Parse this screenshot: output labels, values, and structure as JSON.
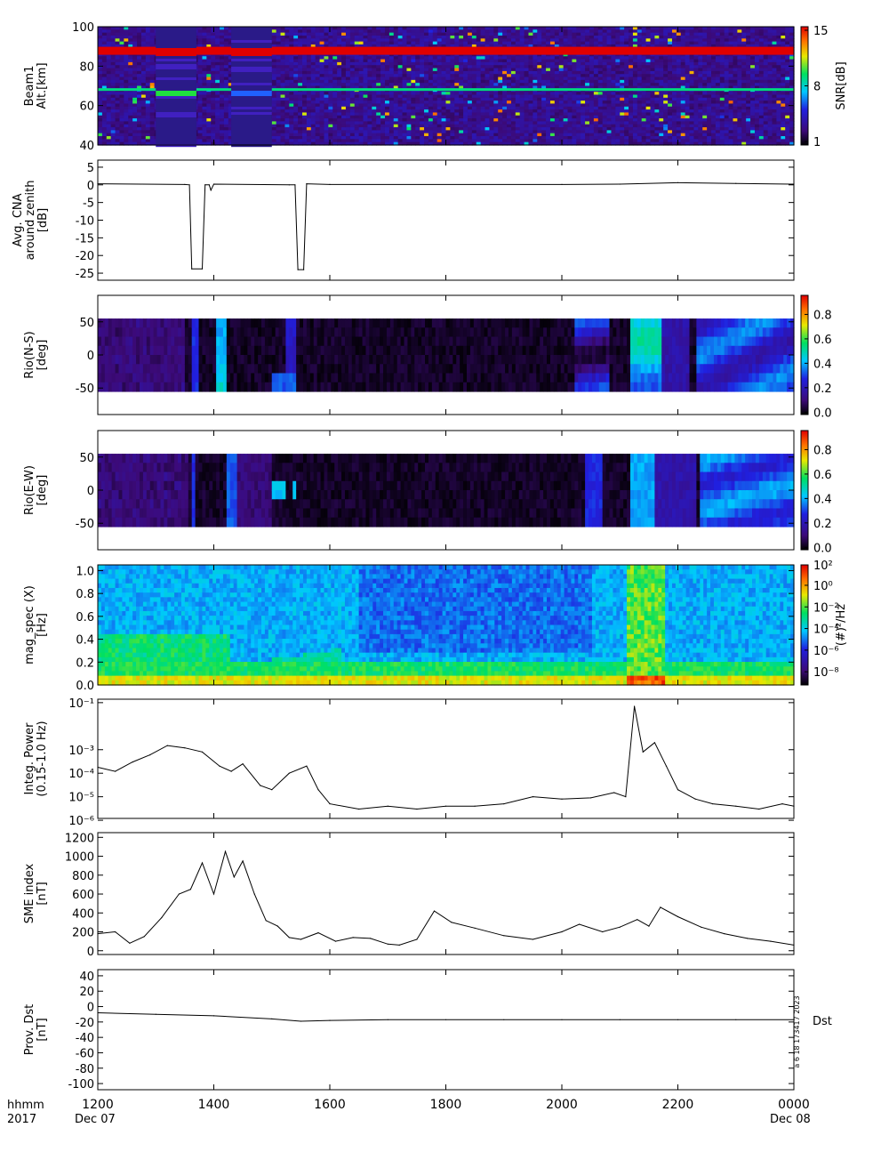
{
  "time_axis": {
    "tick_labels": [
      "1200",
      "1400",
      "1600",
      "1800",
      "2000",
      "2200",
      "0000"
    ],
    "tick_hours": [
      12,
      14,
      16,
      18,
      20,
      22,
      24
    ],
    "range_hours": [
      12,
      24
    ],
    "row_label_1": "hhmm",
    "row_label_2": "2017",
    "start_date": "Dec 07",
    "end_date": "Dec 08"
  },
  "side_note": "a  6 18 173417 2023",
  "chart_data": [
    {
      "id": "beam1",
      "type": "heatmap",
      "ylabel": [
        "Beam1",
        "Alt.[km]"
      ],
      "yticks": [
        "100",
        "80",
        "60",
        "40"
      ],
      "ylim": [
        40,
        100
      ],
      "colorbar": {
        "label": "SNR[dB]",
        "ticks": [
          "15",
          "8",
          "1"
        ],
        "range": [
          1,
          15
        ]
      },
      "gaps": [
        [
          13.0,
          13.7
        ],
        [
          14.3,
          15.0
        ]
      ],
      "bands": [
        {
          "alt": 88,
          "value": 15
        },
        {
          "alt": 67,
          "value": 9
        }
      ]
    },
    {
      "id": "cna",
      "type": "line",
      "ylabel": [
        "Avg. CNA",
        "around zenith",
        "[dB]"
      ],
      "yticks": [
        "5",
        "0",
        "-5",
        "-10",
        "-15",
        "-20",
        "-25"
      ],
      "ylim": [
        -27,
        7
      ],
      "x": [
        12.0,
        13.5,
        13.58,
        13.62,
        13.8,
        13.85,
        13.92,
        13.95,
        14.0,
        15.3,
        15.4,
        15.45,
        15.55,
        15.6,
        16.0,
        20.0,
        21.0,
        22.0,
        23.0,
        24.0
      ],
      "y": [
        0.3,
        0.1,
        0.0,
        -23.8,
        -23.8,
        0.0,
        0.0,
        -1.5,
        0.2,
        0.0,
        0.0,
        -24.0,
        -24.0,
        0.3,
        0.1,
        0.1,
        0.2,
        0.6,
        0.4,
        0.2
      ]
    },
    {
      "id": "rio_ns",
      "type": "heatmap",
      "ylabel": [
        "Rio(N-S)",
        "[deg]"
      ],
      "yticks": [
        "50",
        "0",
        "-50"
      ],
      "ylim": [
        -90,
        90
      ],
      "data_range": [
        -55,
        55
      ],
      "colorbar": {
        "label": "",
        "ticks": [
          "0.8",
          "0.6",
          "0.4",
          "0.2",
          "0.0"
        ],
        "range": [
          0,
          0.95
        ]
      }
    },
    {
      "id": "rio_ew",
      "type": "heatmap",
      "ylabel": [
        "Rio(E-W)",
        "[deg]"
      ],
      "yticks": [
        "50",
        "0",
        "-50"
      ],
      "ylim": [
        -90,
        90
      ],
      "data_range": [
        -55,
        55
      ],
      "colorbar": {
        "label": "",
        "ticks": [
          "0.8",
          "0.6",
          "0.4",
          "0.2",
          "0.0"
        ],
        "range": [
          0,
          0.95
        ]
      }
    },
    {
      "id": "magspec",
      "type": "heatmap",
      "ylabel": [
        "mag_spec (X)",
        "[Hz]"
      ],
      "yticks": [
        "1.0",
        "0.8",
        "0.6",
        "0.4",
        "0.2",
        "0.0"
      ],
      "ylim": [
        0,
        1.05
      ],
      "colorbar": {
        "label": "(#)²/Hz",
        "ticks": [
          "10²",
          "10⁰",
          "10⁻²",
          "10⁻⁴",
          "10⁻⁶",
          "10⁻⁸"
        ],
        "range": [
          -9,
          2.3
        ]
      }
    },
    {
      "id": "integ_power",
      "type": "line",
      "ylabel": [
        "Integ. Power",
        "(0.15-1.0 Hz)"
      ],
      "yscale": "log",
      "yticks": [
        "10⁻¹",
        "10⁻³",
        "10⁻⁴",
        "10⁻⁵",
        "10⁻⁶"
      ],
      "ytick_exponents": [
        -1,
        -3,
        -4,
        -5,
        -6
      ],
      "ylim": [
        1.2e-06,
        0.14
      ],
      "x": [
        12.0,
        12.3,
        12.6,
        12.9,
        13.2,
        13.5,
        13.8,
        14.1,
        14.3,
        14.5,
        14.8,
        15.0,
        15.3,
        15.6,
        15.8,
        16.0,
        16.5,
        17.0,
        17.5,
        18.0,
        18.5,
        19.0,
        19.5,
        20.0,
        20.5,
        20.9,
        21.1,
        21.25,
        21.4,
        21.6,
        21.8,
        22.0,
        22.3,
        22.6,
        23.0,
        23.4,
        23.8,
        24.0
      ],
      "y": [
        0.00018,
        0.00012,
        0.0003,
        0.0006,
        0.0015,
        0.0012,
        0.0008,
        0.0002,
        0.00012,
        0.00025,
        3e-05,
        2e-05,
        0.0001,
        0.0002,
        2e-05,
        5e-06,
        3e-06,
        4e-06,
        3e-06,
        4e-06,
        4e-06,
        5e-06,
        1e-05,
        8e-06,
        9e-06,
        1.5e-05,
        1e-05,
        0.07,
        0.0008,
        0.002,
        0.0002,
        2e-05,
        8e-06,
        5e-06,
        4e-06,
        3e-06,
        5e-06,
        4e-06
      ]
    },
    {
      "id": "sme",
      "type": "line",
      "ylabel": [
        "SME index",
        "[nT]"
      ],
      "yticks": [
        "1200",
        "1000",
        "800",
        "600",
        "400",
        "200",
        "0"
      ],
      "ylim": [
        -40,
        1250
      ],
      "x": [
        12.0,
        12.3,
        12.55,
        12.8,
        13.1,
        13.4,
        13.6,
        13.8,
        14.0,
        14.2,
        14.35,
        14.5,
        14.7,
        14.9,
        15.1,
        15.3,
        15.5,
        15.8,
        16.1,
        16.4,
        16.7,
        17.0,
        17.2,
        17.5,
        17.8,
        18.1,
        18.5,
        19.0,
        19.5,
        20.0,
        20.3,
        20.7,
        21.0,
        21.3,
        21.5,
        21.7,
        22.0,
        22.4,
        22.8,
        23.2,
        23.6,
        24.0
      ],
      "y": [
        180,
        200,
        80,
        150,
        350,
        600,
        650,
        930,
        600,
        1050,
        780,
        950,
        600,
        320,
        260,
        140,
        120,
        190,
        100,
        140,
        130,
        70,
        60,
        120,
        420,
        300,
        240,
        160,
        120,
        200,
        280,
        200,
        250,
        330,
        260,
        460,
        360,
        250,
        180,
        130,
        100,
        60
      ]
    },
    {
      "id": "dst",
      "type": "line",
      "ylabel": [
        "Prov. Dst",
        "[nT]"
      ],
      "yticks": [
        "40",
        "20",
        "0",
        "-20",
        "-40",
        "-60",
        "-80",
        "-100"
      ],
      "ylim": [
        -108,
        48
      ],
      "x": [
        12.0,
        13.0,
        14.0,
        15.0,
        15.5,
        16.0,
        17.0,
        18.0,
        19.0,
        20.0,
        21.0,
        22.0,
        23.0,
        24.0
      ],
      "y": [
        -8,
        -10,
        -12,
        -16,
        -19,
        -18,
        -17,
        -17,
        -17,
        -17,
        -17,
        -17,
        -17,
        -17
      ],
      "series_label": "Dst"
    }
  ]
}
